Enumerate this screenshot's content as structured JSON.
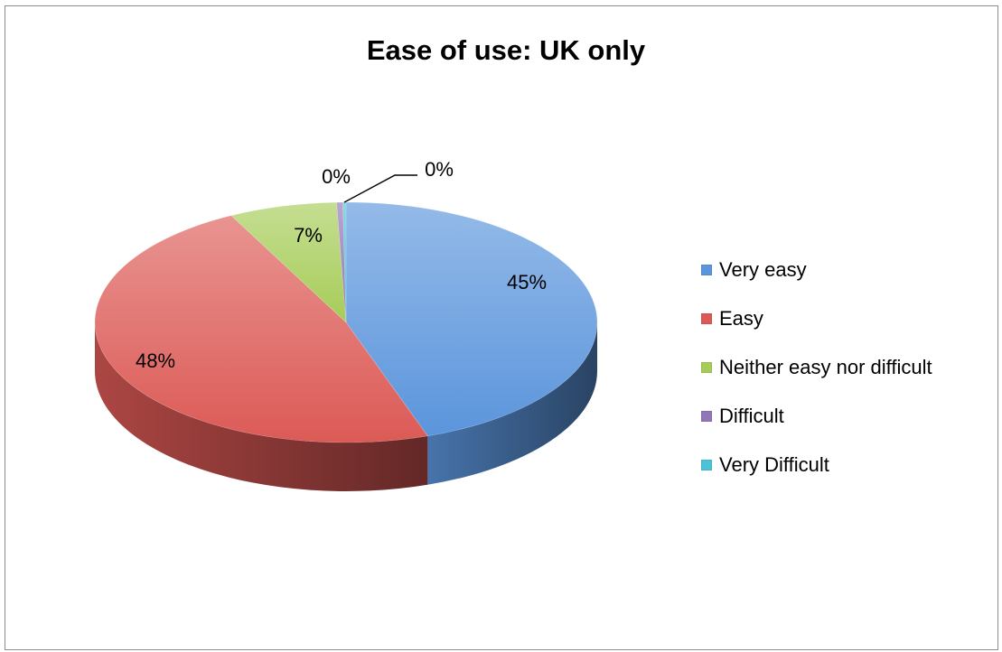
{
  "chart_data": {
    "type": "pie",
    "title": "Ease of use: UK only",
    "categories": [
      "Very easy",
      "Easy",
      "Neither easy nor difficult",
      "Difficult",
      "Very Difficult"
    ],
    "values": [
      45,
      48,
      7,
      0.4,
      0.2
    ],
    "data_labels": [
      "45%",
      "48%",
      "7%",
      "0%",
      "0%"
    ],
    "colors": [
      "#5b95dc",
      "#dc5a56",
      "#a6cc58",
      "#9277b8",
      "#4cc2d6"
    ],
    "style": "3d",
    "legend_position": "right",
    "start_angle": "top, clockwise"
  }
}
